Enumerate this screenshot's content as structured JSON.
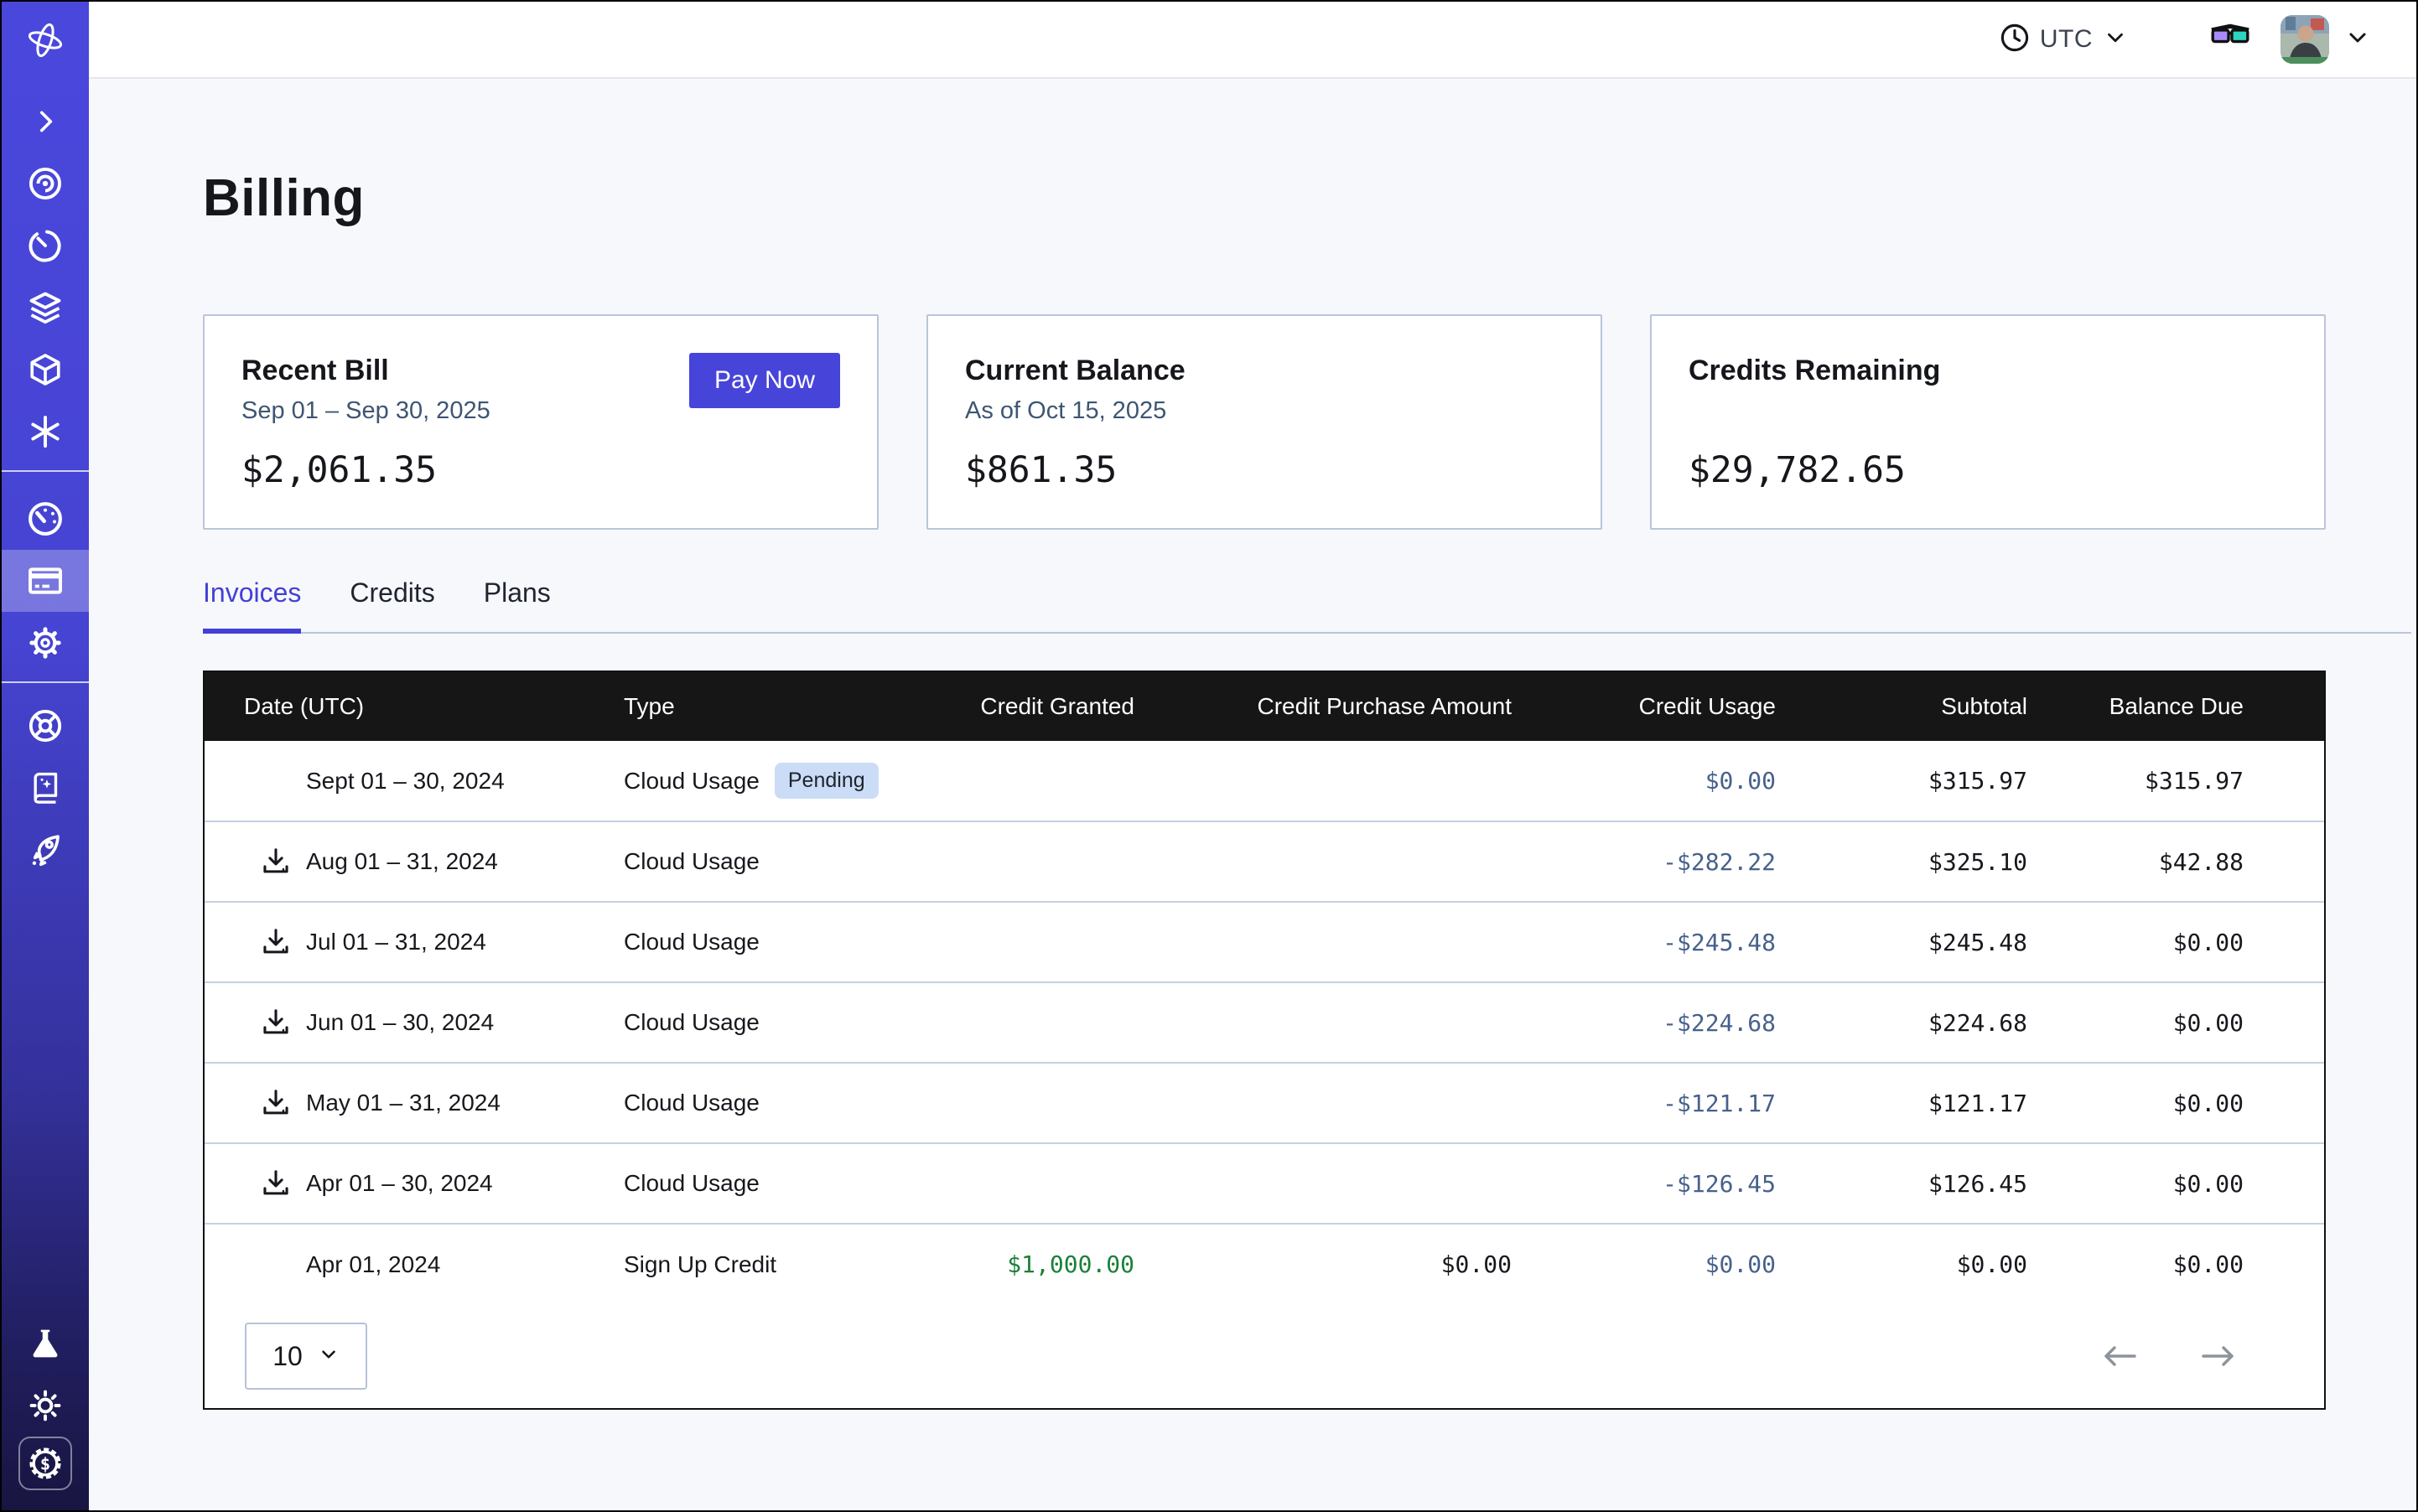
{
  "topbar": {
    "timezone": "UTC"
  },
  "page": {
    "title": "Billing"
  },
  "cards": [
    {
      "title": "Recent Bill",
      "subtitle": "Sep 01 – Sep 30, 2025",
      "amount": "$2,061.35",
      "action": "Pay Now"
    },
    {
      "title": "Current Balance",
      "subtitle": "As of Oct 15, 2025",
      "amount": "$861.35"
    },
    {
      "title": "Credits Remaining",
      "subtitle": "",
      "amount": "$29,782.65"
    }
  ],
  "tabs": [
    {
      "label": "Invoices",
      "active": true
    },
    {
      "label": "Credits",
      "active": false
    },
    {
      "label": "Plans",
      "active": false
    }
  ],
  "table": {
    "columns": [
      "Date (UTC)",
      "Type",
      "Credit Granted",
      "Credit Purchase Amount",
      "Credit Usage",
      "Subtotal",
      "Balance Due"
    ],
    "rows": [
      {
        "date": "Sept 01 – 30, 2024",
        "download": false,
        "type": "Cloud Usage",
        "badge": "Pending",
        "credit_granted": "",
        "credit_purchase": "",
        "credit_usage": "$0.00",
        "subtotal": "$315.97",
        "balance_due": "$315.97"
      },
      {
        "date": "Aug 01 – 31, 2024",
        "download": true,
        "type": "Cloud Usage",
        "badge": "",
        "credit_granted": "",
        "credit_purchase": "",
        "credit_usage": "-$282.22",
        "subtotal": "$325.10",
        "balance_due": "$42.88"
      },
      {
        "date": "Jul 01 – 31, 2024",
        "download": true,
        "type": "Cloud Usage",
        "badge": "",
        "credit_granted": "",
        "credit_purchase": "",
        "credit_usage": "-$245.48",
        "subtotal": "$245.48",
        "balance_due": "$0.00"
      },
      {
        "date": "Jun 01 – 30, 2024",
        "download": true,
        "type": "Cloud Usage",
        "badge": "",
        "credit_granted": "",
        "credit_purchase": "",
        "credit_usage": "-$224.68",
        "subtotal": "$224.68",
        "balance_due": "$0.00"
      },
      {
        "date": "May 01 – 31, 2024",
        "download": true,
        "type": "Cloud Usage",
        "badge": "",
        "credit_granted": "",
        "credit_purchase": "",
        "credit_usage": "-$121.17",
        "subtotal": "$121.17",
        "balance_due": "$0.00"
      },
      {
        "date": "Apr 01 – 30, 2024",
        "download": true,
        "type": "Cloud Usage",
        "badge": "",
        "credit_granted": "",
        "credit_purchase": "",
        "credit_usage": "-$126.45",
        "subtotal": "$126.45",
        "balance_due": "$0.00"
      },
      {
        "date": "Apr 01, 2024",
        "download": false,
        "type": "Sign Up Credit",
        "badge": "",
        "credit_granted": "$1,000.00",
        "credit_purchase": "$0.00",
        "credit_usage": "$0.00",
        "subtotal": "$0.00",
        "balance_due": "$0.00"
      }
    ],
    "page_size": "10"
  },
  "sidebar": {
    "items": [
      "orbit-logo",
      "chevron-right",
      "spiral-eye",
      "timer",
      "layers",
      "cube",
      "asterisk",
      "gauge",
      "credit-card",
      "gear",
      "wheel",
      "book-sparkles",
      "rocket",
      "flask",
      "sun",
      "dollar-badge"
    ],
    "active_item": "credit-card"
  },
  "colors": {
    "accent": "#4744d9",
    "sidebar_top": "#4a47dd",
    "sidebar_bottom": "#181540",
    "table_header_bg": "#161616",
    "value_blue": "#47618c",
    "value_green": "#1a8038",
    "badge_bg": "#cbdcf7",
    "page_bg": "#f7f8fb"
  }
}
